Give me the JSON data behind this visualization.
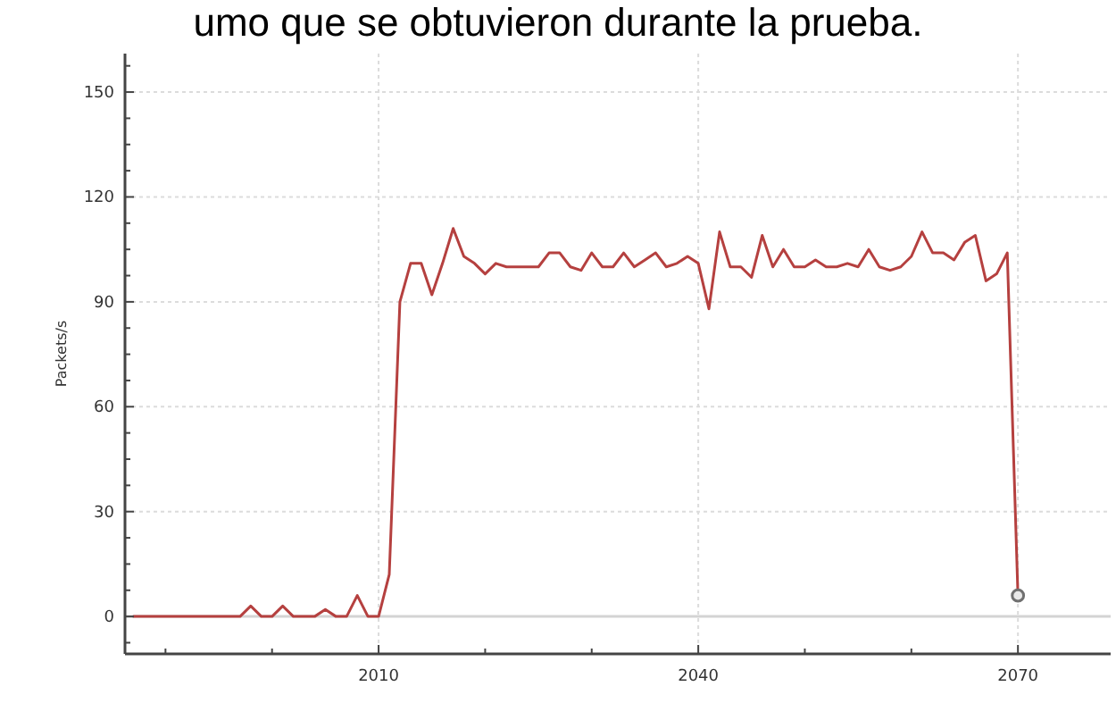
{
  "chart_data": {
    "type": "line",
    "title": "umo que se obtuvieron durante la prueba.",
    "ylabel": "Packets/s",
    "xlim": [
      1986.2,
      2078.7
    ],
    "ylim": [
      -10.7,
      161
    ],
    "xticks": [
      {
        "value": 1990,
        "label": null
      },
      {
        "value": 2000,
        "label": null
      },
      2010,
      {
        "value": 2020,
        "label": null
      },
      {
        "value": 2030,
        "label": null
      },
      2040,
      {
        "value": 2050,
        "label": null
      },
      {
        "value": 2060,
        "label": null
      },
      2070
    ],
    "yticks": [
      {
        "value": -7.5,
        "label": null
      },
      0,
      {
        "value": 7.5,
        "label": null
      },
      {
        "value": 15,
        "label": null
      },
      {
        "value": 22.5,
        "label": null
      },
      30,
      {
        "value": 37.5,
        "label": null
      },
      {
        "value": 45,
        "label": null
      },
      {
        "value": 52.5,
        "label": null
      },
      60,
      {
        "value": 67.5,
        "label": null
      },
      {
        "value": 75,
        "label": null
      },
      {
        "value": 82.5,
        "label": null
      },
      90,
      {
        "value": 97.5,
        "label": null
      },
      {
        "value": 105,
        "label": null
      },
      {
        "value": 112.5,
        "label": null
      },
      120,
      {
        "value": 127.5,
        "label": null
      },
      {
        "value": 135,
        "label": null
      },
      {
        "value": 142.5,
        "label": null
      },
      150,
      {
        "value": 157.5,
        "label": null
      }
    ],
    "grid": true,
    "line_style": "solid",
    "marker": "none",
    "ref_lines": [
      {
        "axis": "y",
        "value": 0,
        "color": "#d4d4d4"
      }
    ],
    "series": [
      {
        "color": "#b5403f",
        "x": [
          1987,
          1988,
          1989,
          1990,
          1991,
          1992,
          1993,
          1994,
          1995,
          1996,
          1997,
          1998,
          1999,
          2000,
          2001,
          2002,
          2003,
          2004,
          2005,
          2006,
          2007,
          2008,
          2009,
          2010,
          2011,
          2012,
          2013,
          2014,
          2015,
          2016,
          2017,
          2018,
          2019,
          2020,
          2021,
          2022,
          2023,
          2024,
          2025,
          2026,
          2027,
          2028,
          2029,
          2030,
          2031,
          2032,
          2033,
          2034,
          2035,
          2036,
          2037,
          2038,
          2039,
          2040,
          2041,
          2042,
          2043,
          2044,
          2045,
          2046,
          2047,
          2048,
          2049,
          2050,
          2051,
          2052,
          2053,
          2054,
          2055,
          2056,
          2057,
          2058,
          2059,
          2060,
          2061,
          2062,
          2063,
          2064,
          2065,
          2066,
          2067,
          2068,
          2069,
          2070
        ],
        "values": [
          0,
          0,
          0,
          0,
          0,
          0,
          0,
          0,
          0,
          0,
          0,
          3,
          0,
          0,
          3,
          0,
          0,
          0,
          2,
          0,
          0,
          6,
          0,
          0,
          12,
          90,
          101,
          101,
          92,
          101,
          111,
          103,
          101,
          98,
          101,
          100,
          100,
          100,
          100,
          104,
          104,
          100,
          99,
          104,
          100,
          100,
          104,
          100,
          102,
          104,
          100,
          101,
          103,
          101,
          88,
          110,
          100,
          100,
          97,
          109,
          100,
          105,
          100,
          100,
          102,
          100,
          100,
          101,
          100,
          105,
          100,
          99,
          100,
          103,
          110,
          104,
          104,
          102,
          107,
          109,
          96,
          98,
          104,
          6
        ]
      },
      {
        "type": "scatter",
        "marker": "circle",
        "color": "#707070",
        "x": [
          2070
        ],
        "values": [
          6
        ]
      }
    ]
  }
}
